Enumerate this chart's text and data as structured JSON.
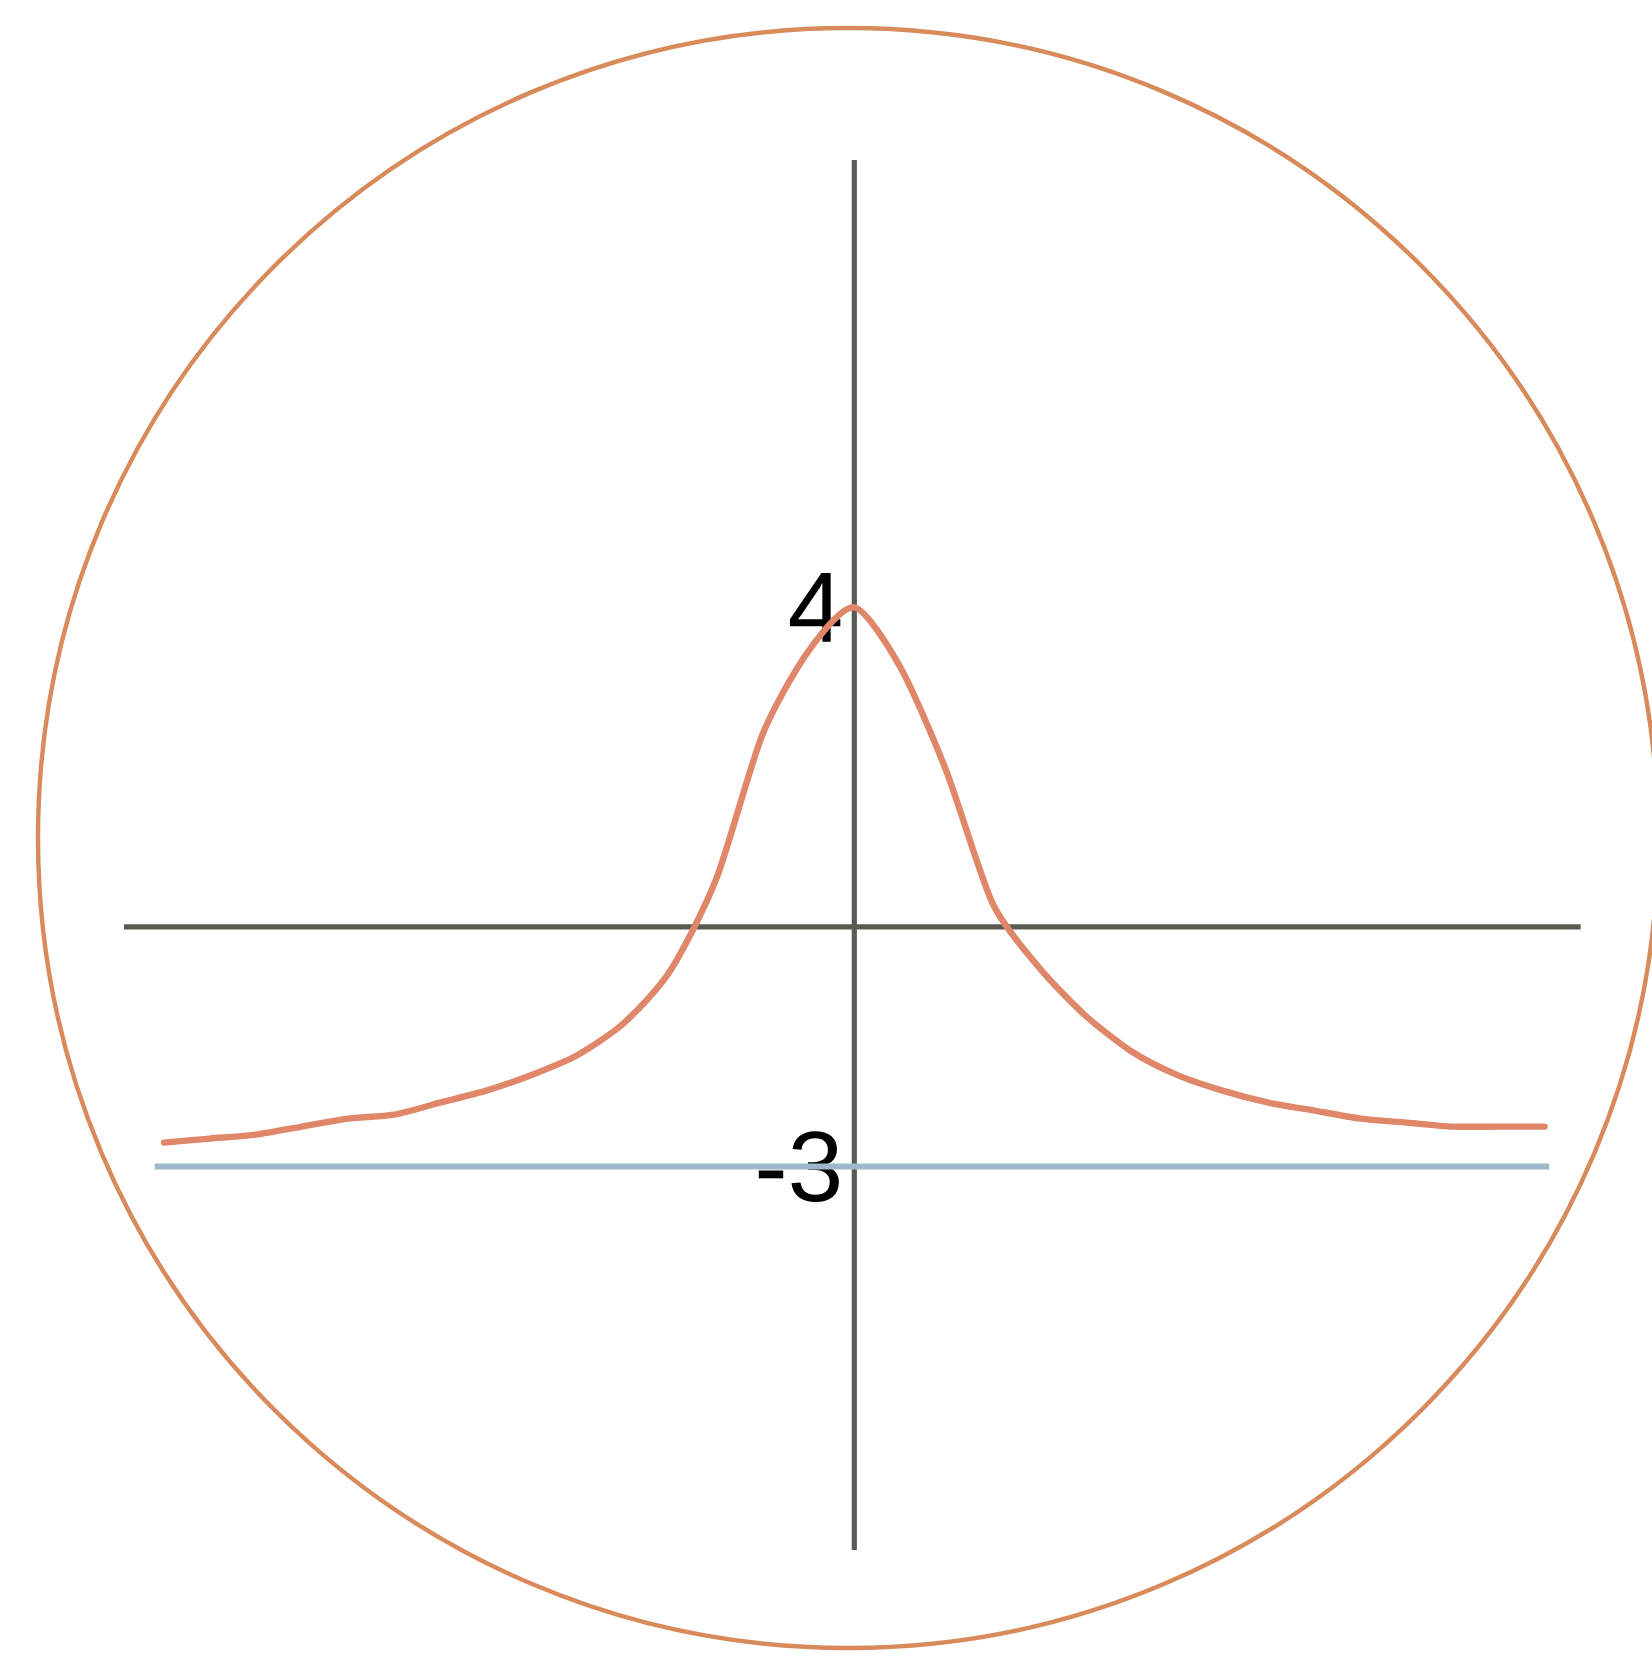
{
  "chart_data": {
    "type": "line",
    "categories": [
      null,
      null,
      null,
      null,
      null,
      null,
      null,
      null,
      null,
      null,
      null,
      null,
      null,
      null,
      null,
      null,
      null,
      null,
      null,
      null,
      null,
      null,
      null,
      null,
      null,
      null,
      null,
      null,
      null,
      null,
      null
    ],
    "series": [
      {
        "color": "#e0876a",
        "values": [
          -2.7,
          -2.65,
          -2.6,
          -2.5,
          -2.4,
          -2.35,
          -2.2,
          -2.05,
          -1.85,
          -1.6,
          -1.2,
          -0.55,
          0.6,
          2.4,
          3.45,
          4,
          3.25,
          1.95,
          0.3,
          -0.5,
          -1.1,
          -1.55,
          -1.85,
          -2.05,
          -2.2,
          -2.3,
          -2.4,
          -2.45,
          -2.5,
          -2.5,
          -2.5
        ]
      }
    ],
    "ylim": [
      -7.8,
      9.6
    ],
    "yticks": [
      -3,
      4
    ],
    "ref_lines": [
      {
        "axis": "y",
        "value": -3,
        "color": "#9db9c9"
      }
    ],
    "tick_labels": "y",
    "marker": "none",
    "line_style": "solid"
  }
}
